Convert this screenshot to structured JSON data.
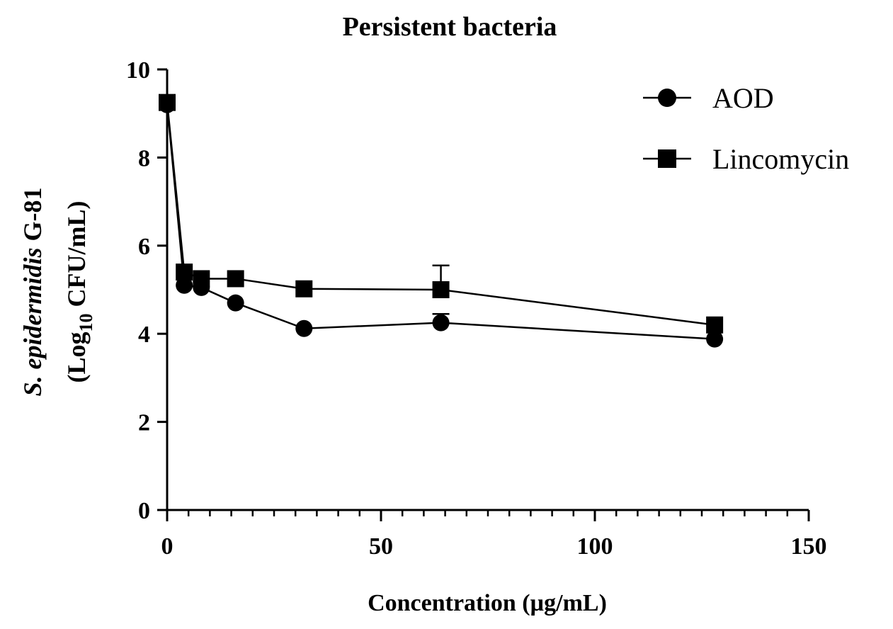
{
  "chart_data": {
    "type": "line",
    "title": "Persistent bacteria",
    "xlabel": "Concentration (µg/mL)",
    "ylabel": {
      "line1_italic": "S. epidermidis",
      "line1_rest": " G-81",
      "line2_prefix": "(Log",
      "line2_sub": "10",
      "line2_suffix": " CFU/mL)"
    },
    "xlim": [
      0,
      150
    ],
    "ylim": [
      0,
      10
    ],
    "xticks": [
      0,
      50,
      100,
      150
    ],
    "yticks": [
      0,
      2,
      4,
      6,
      8,
      10
    ],
    "xticks_minor": [
      5,
      10,
      15,
      20,
      25,
      30,
      35,
      40,
      45,
      55,
      60,
      65,
      70,
      75,
      80,
      85,
      90,
      95,
      105,
      110,
      115,
      120,
      125,
      130,
      135,
      140,
      145
    ],
    "grid": false,
    "legend_position": "top-right",
    "series": [
      {
        "name": "AOD",
        "marker": "circle",
        "color": "#000000",
        "x": [
          0,
          4,
          8,
          16,
          32,
          64,
          128
        ],
        "y": [
          9.2,
          5.1,
          5.05,
          4.7,
          4.12,
          4.25,
          3.88
        ],
        "err": [
          0,
          0,
          0,
          0,
          0,
          0.2,
          0
        ]
      },
      {
        "name": "Lincomycin",
        "marker": "square",
        "color": "#000000",
        "x": [
          0,
          4,
          8,
          16,
          32,
          64,
          128
        ],
        "y": [
          9.25,
          5.4,
          5.25,
          5.25,
          5.02,
          5.0,
          4.2
        ],
        "err": [
          0,
          0,
          0,
          0,
          0,
          0.55,
          0
        ]
      }
    ]
  }
}
